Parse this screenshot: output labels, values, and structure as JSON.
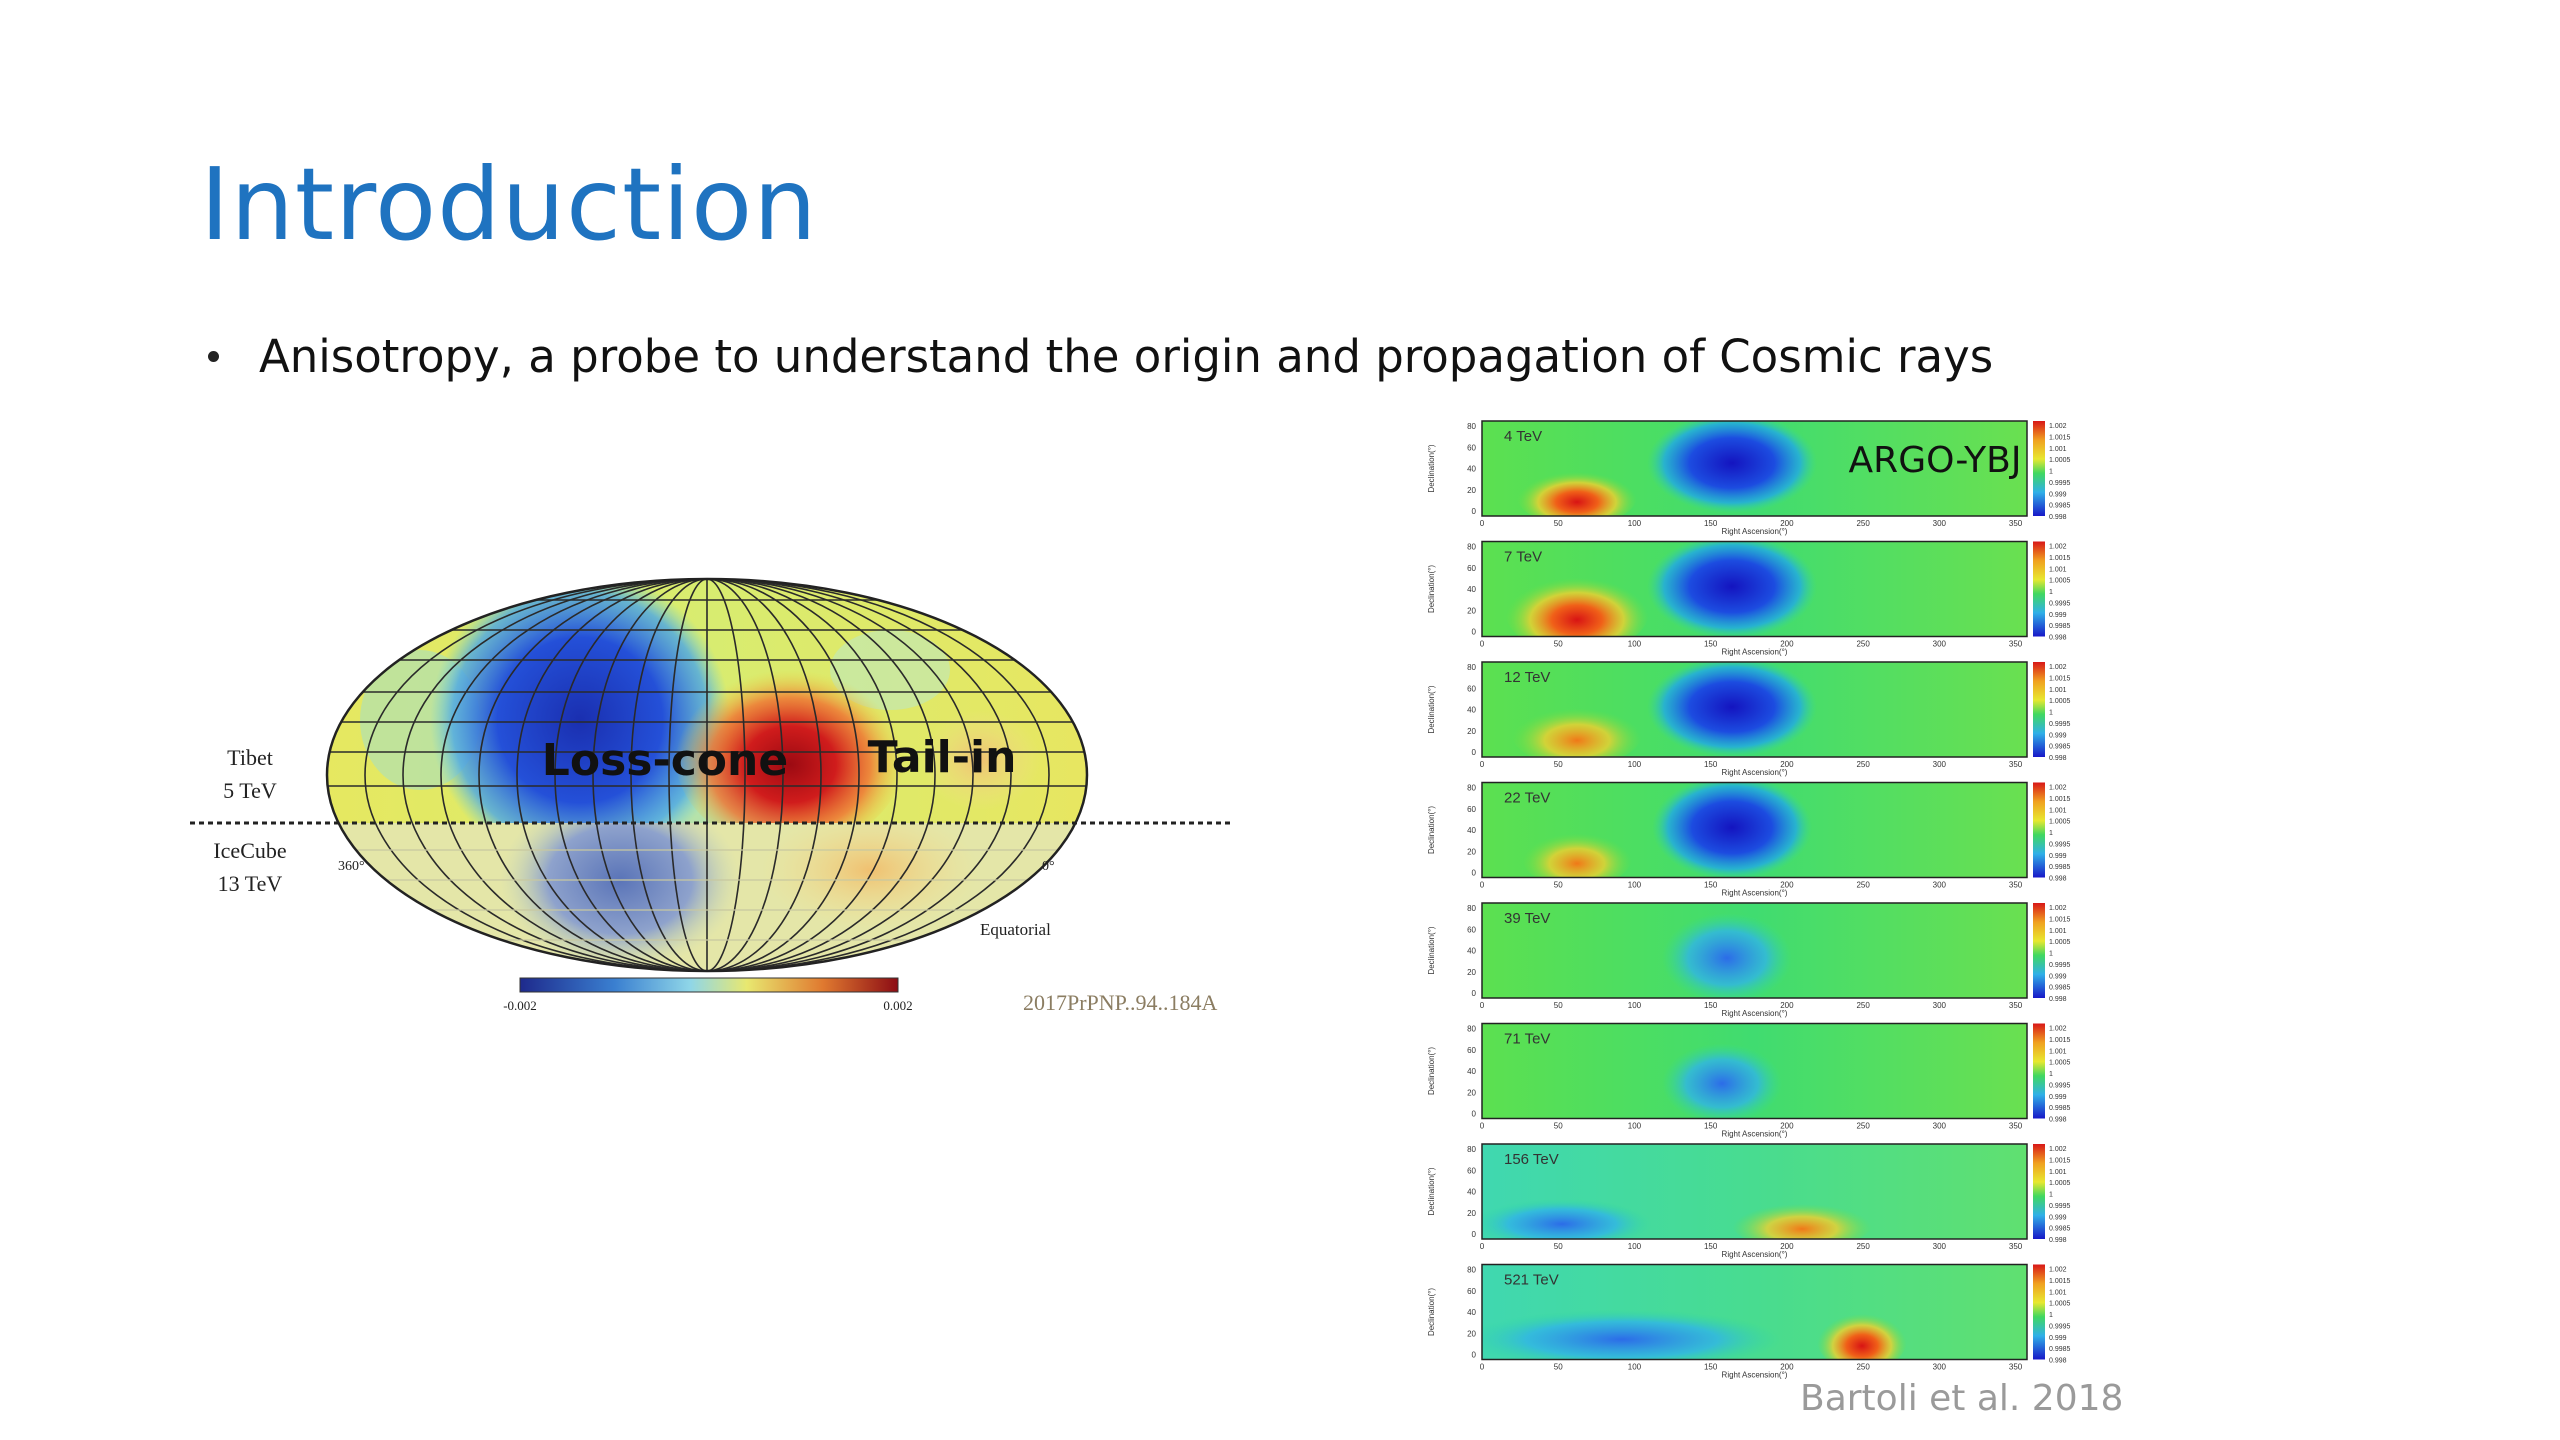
{
  "slide": {
    "title": "Introduction",
    "bullet": "Anisotropy, a probe to understand the origin and propagation of Cosmic rays"
  },
  "skymap": {
    "north_label_line1": "Tibet",
    "north_label_line2": "5 TeV",
    "south_label_line1": "IceCube",
    "south_label_line2": "13 TeV",
    "left_angle": "360°",
    "right_angle": "0°",
    "projection": "Equatorial",
    "region_losscone": "Loss-cone",
    "region_tailin": "Tail-in",
    "colorbar_min": "-0.002",
    "colorbar_max": "0.002",
    "reference": "2017PrPNP..94..184A"
  },
  "argo": {
    "tag": "ARGO-YBJ",
    "credit": "Bartoli et al. 2018",
    "panels": [
      {
        "energy": "4 TeV"
      },
      {
        "energy": "7 TeV"
      },
      {
        "energy": "12 TeV"
      },
      {
        "energy": "22 TeV"
      },
      {
        "energy": "39 TeV"
      },
      {
        "energy": "71 TeV"
      },
      {
        "energy": "156 TeV"
      },
      {
        "energy": "521 TeV"
      }
    ],
    "dec_ticks": [
      "80",
      "60",
      "40",
      "20",
      "0"
    ],
    "ra_ticks": [
      "0",
      "50",
      "100",
      "150",
      "200",
      "250",
      "300",
      "350"
    ],
    "xlabel": "Right Ascension(°)",
    "ylabel": "Declination(°)",
    "scale_ticks": [
      "1.002",
      "1.0015",
      "1.001",
      "1.0005",
      "1",
      "0.9995",
      "0.999",
      "0.9985",
      "0.998"
    ]
  }
}
